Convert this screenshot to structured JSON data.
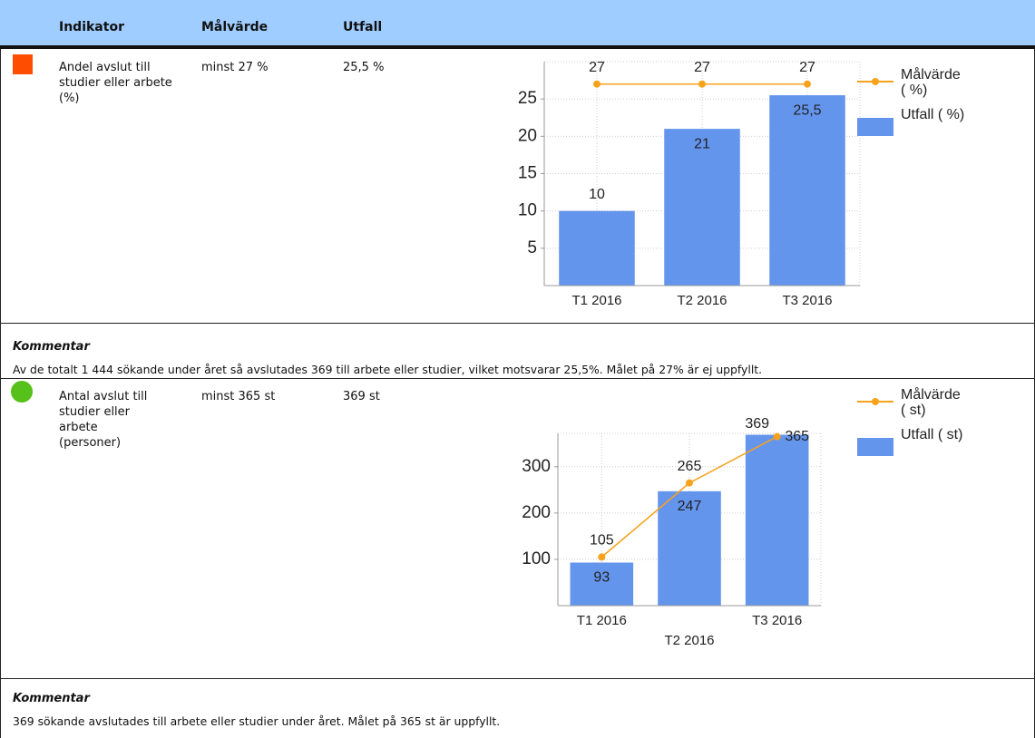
{
  "header": {
    "columns": [
      "Indikator",
      "Målvärde",
      "Utfall"
    ]
  },
  "rows": [
    {
      "status": {
        "shape": "square",
        "color": "#ff4d00"
      },
      "indicator": "Andel avslut till studier eller arbete (%)",
      "target": "minst 27 %",
      "outcome": "25,5 %",
      "chart": {
        "type": "bar",
        "categories": [
          "T1 2016",
          "T2 2016",
          "T3 2016"
        ],
        "series": [
          {
            "name": "Målvärde ( %)",
            "type": "line",
            "color": "#f7a21b",
            "values": [
              27,
              27,
              27
            ]
          },
          {
            "name": "Utfall ( %)",
            "type": "bar",
            "color": "#6495ed",
            "values": [
              10,
              21,
              25.5
            ],
            "value_labels": [
              "10",
              "21",
              "25,5"
            ]
          }
        ],
        "ylim": [
          0,
          30
        ],
        "yticks": [
          5,
          10,
          15,
          20,
          25
        ],
        "grid": true,
        "legend": "right"
      },
      "comment": {
        "title": "Kommentar",
        "text": "Av de totalt 1 444 sökande under året så avslutades 369 till arbete eller studier, vilket motsvarar 25,5%. Målet på 27% är ej uppfyllt."
      }
    },
    {
      "status": {
        "shape": "circle",
        "color": "#56c11a"
      },
      "indicator": "Antal avslut till studier eller arbete (personer)",
      "target": "minst 365 st",
      "outcome": "369 st",
      "chart": {
        "type": "bar",
        "categories": [
          "T1 2016",
          "T2 2016",
          "T3 2016"
        ],
        "series": [
          {
            "name": "Målvärde ( st)",
            "type": "line",
            "color": "#f7a21b",
            "values": [
              105,
              265,
              365
            ]
          },
          {
            "name": "Utfall ( st)",
            "type": "bar",
            "color": "#6495ed",
            "values": [
              93,
              247,
              369
            ]
          }
        ],
        "ylim": [
          0,
          372
        ],
        "yticks": [
          100,
          200,
          300
        ],
        "grid": true,
        "legend": "right"
      },
      "comment": {
        "title": "Kommentar",
        "text": "369 sökande avslutades till arbete eller studier under året. Målet på 365 st är uppfyllt."
      }
    }
  ]
}
